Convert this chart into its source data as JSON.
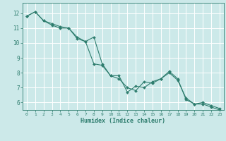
{
  "xlabel": "Humidex (Indice chaleur)",
  "bg_color": "#cce9e9",
  "grid_color": "#ffffff",
  "line_color": "#2e7d6e",
  "xlim": [
    -0.5,
    23.5
  ],
  "ylim": [
    5.5,
    12.7
  ],
  "yticks": [
    6,
    7,
    8,
    9,
    10,
    11,
    12
  ],
  "xticks": [
    0,
    1,
    2,
    3,
    4,
    5,
    6,
    7,
    8,
    9,
    10,
    11,
    12,
    13,
    14,
    15,
    16,
    17,
    18,
    19,
    20,
    21,
    22,
    23
  ],
  "line1_x": [
    0,
    1,
    2,
    3,
    4,
    5,
    6,
    7,
    8,
    9,
    10,
    11,
    12,
    13,
    14,
    15,
    16,
    17,
    18,
    19,
    20,
    21,
    22,
    23
  ],
  "line1_y": [
    11.8,
    12.1,
    11.5,
    11.3,
    11.1,
    11.0,
    10.4,
    10.1,
    10.4,
    8.6,
    7.8,
    7.8,
    6.7,
    7.1,
    7.0,
    7.4,
    7.6,
    8.1,
    7.6,
    6.2,
    5.9,
    6.0,
    5.8,
    5.6
  ],
  "line2_x": [
    0,
    1,
    2,
    3,
    4,
    5,
    6,
    7,
    8,
    9,
    10,
    11,
    12,
    13,
    14,
    15,
    16,
    17,
    18,
    19,
    20,
    21,
    22,
    23
  ],
  "line2_y": [
    11.8,
    12.1,
    11.5,
    11.2,
    11.0,
    11.0,
    10.3,
    10.1,
    8.6,
    8.5,
    7.8,
    7.6,
    7.0,
    6.8,
    7.4,
    7.3,
    7.6,
    8.0,
    7.5,
    6.3,
    5.9,
    5.9,
    5.7,
    5.5
  ]
}
